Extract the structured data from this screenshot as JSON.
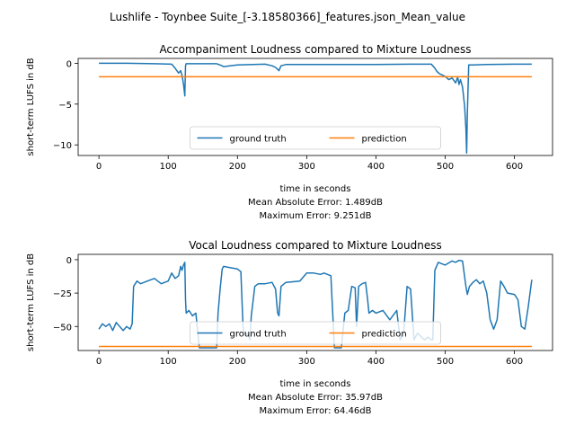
{
  "figure": {
    "suptitle": "Lushlife - Toynbee Suite_[-3.18580366]_features.json_Mean_value",
    "colors": {
      "ground_truth": "#1f77b4",
      "prediction": "#ff7f0e"
    }
  },
  "chart_data": [
    {
      "type": "line",
      "title": "Accompaniment Loudness compared to Mixture Loudness",
      "xlabel": "time in seconds",
      "ylabel": "short-term LUFS in dB",
      "xlim": [
        -30,
        655
      ],
      "ylim": [
        -11.3,
        0.6
      ],
      "xticks": [
        0,
        100,
        200,
        300,
        400,
        500,
        600
      ],
      "yticks": [
        0,
        -5,
        -10
      ],
      "ytick_labels": [
        "0",
        "−5",
        "−10"
      ],
      "legend_position": "lower center",
      "grid": false,
      "mae_text": "Mean Absolute Error: 1.489dB",
      "max_text": "Maximum Error: 9.251dB",
      "series": [
        {
          "name": "ground truth",
          "x": [
            0,
            40,
            80,
            105,
            110,
            115,
            118,
            120,
            122,
            124,
            125,
            126,
            130,
            150,
            170,
            175,
            180,
            200,
            240,
            250,
            255,
            260,
            263,
            270,
            300,
            350,
            400,
            450,
            480,
            485,
            488,
            492,
            495,
            500,
            505,
            510,
            515,
            518,
            520,
            522,
            525,
            528,
            530,
            531,
            532,
            534,
            540,
            560,
            600,
            625
          ],
          "y": [
            0,
            0,
            -0.05,
            -0.1,
            -0.6,
            -1.2,
            -0.9,
            -1.5,
            -2.5,
            -4.0,
            -0.3,
            -0.05,
            -0.05,
            -0.05,
            -0.05,
            -0.2,
            -0.4,
            -0.2,
            -0.1,
            -0.3,
            -0.5,
            -0.9,
            -0.3,
            -0.15,
            -0.15,
            -0.15,
            -0.15,
            -0.1,
            -0.1,
            -0.6,
            -1.0,
            -1.3,
            -1.4,
            -1.6,
            -2.0,
            -1.8,
            -2.4,
            -1.7,
            -2.6,
            -2.0,
            -2.9,
            -5.2,
            -8.0,
            -11.0,
            -6.0,
            -0.2,
            -0.2,
            -0.15,
            -0.1,
            -0.1
          ]
        },
        {
          "name": "prediction",
          "x": [
            0,
            625
          ],
          "y": [
            -1.65,
            -1.65
          ]
        }
      ]
    },
    {
      "type": "line",
      "title": "Vocal Loudness compared to Mixture Loudness",
      "xlabel": "time in seconds",
      "ylabel": "short-term LUFS in dB",
      "xlim": [
        -30,
        655
      ],
      "ylim": [
        -68,
        4
      ],
      "xticks": [
        0,
        100,
        200,
        300,
        400,
        500,
        600
      ],
      "yticks": [
        0,
        -25,
        -50
      ],
      "ytick_labels": [
        "0",
        "−25",
        "−50"
      ],
      "legend_position": "lower center",
      "grid": false,
      "mae_text": "Mean Absolute Error: 35.97dB",
      "max_text": "Maximum Error: 64.46dB",
      "series": [
        {
          "name": "ground truth",
          "x": [
            0,
            5,
            10,
            15,
            20,
            25,
            30,
            35,
            40,
            45,
            48,
            50,
            55,
            60,
            70,
            80,
            90,
            100,
            105,
            110,
            115,
            118,
            120,
            122,
            124,
            125,
            126,
            130,
            135,
            140,
            145,
            150,
            160,
            170,
            172,
            175,
            178,
            180,
            190,
            200,
            205,
            208,
            210,
            212,
            215,
            218,
            220,
            225,
            230,
            240,
            250,
            255,
            258,
            260,
            263,
            270,
            290,
            300,
            310,
            320,
            325,
            330,
            335,
            340,
            345,
            350,
            355,
            360,
            365,
            370,
            372,
            375,
            380,
            385,
            388,
            390,
            395,
            400,
            410,
            420,
            430,
            435,
            440,
            445,
            450,
            455,
            460,
            470,
            475,
            480,
            482,
            485,
            490,
            500,
            510,
            515,
            520,
            525,
            530,
            532,
            535,
            540,
            545,
            550,
            555,
            560,
            565,
            570,
            575,
            580,
            585,
            590,
            600,
            605,
            610,
            615,
            620,
            625
          ],
          "y": [
            -52,
            -48,
            -50,
            -48,
            -53,
            -47,
            -50,
            -53,
            -50,
            -52,
            -48,
            -20,
            -16,
            -18,
            -16,
            -14,
            -18,
            -16,
            -10,
            -14,
            -12,
            -5,
            -8,
            -4,
            -2,
            -30,
            -40,
            -38,
            -42,
            -40,
            -66,
            -66,
            -66,
            -66,
            -40,
            -22,
            -7,
            -5,
            -6,
            -7,
            -9,
            -50,
            -55,
            -56,
            -55,
            -60,
            -42,
            -20,
            -18,
            -18,
            -17,
            -22,
            -40,
            -42,
            -20,
            -17,
            -16,
            -10,
            -10,
            -11,
            -10,
            -11,
            -12,
            -66,
            -66,
            -66,
            -40,
            -38,
            -20,
            -21,
            -50,
            -20,
            -18,
            -17,
            -30,
            -40,
            -38,
            -40,
            -38,
            -45,
            -38,
            -60,
            -55,
            -20,
            -22,
            -60,
            -55,
            -60,
            -58,
            -60,
            -60,
            -8,
            -2,
            -4,
            -1,
            -2,
            -0.5,
            -1,
            -20,
            -26,
            -20,
            -17,
            -15,
            -18,
            -16,
            -25,
            -45,
            -52,
            -45,
            -16,
            -20,
            -25,
            -26,
            -30,
            -50,
            -52,
            -35,
            -15
          ]
        },
        {
          "name": "prediction",
          "x": [
            0,
            625
          ],
          "y": [
            -65,
            -65
          ]
        }
      ]
    }
  ]
}
